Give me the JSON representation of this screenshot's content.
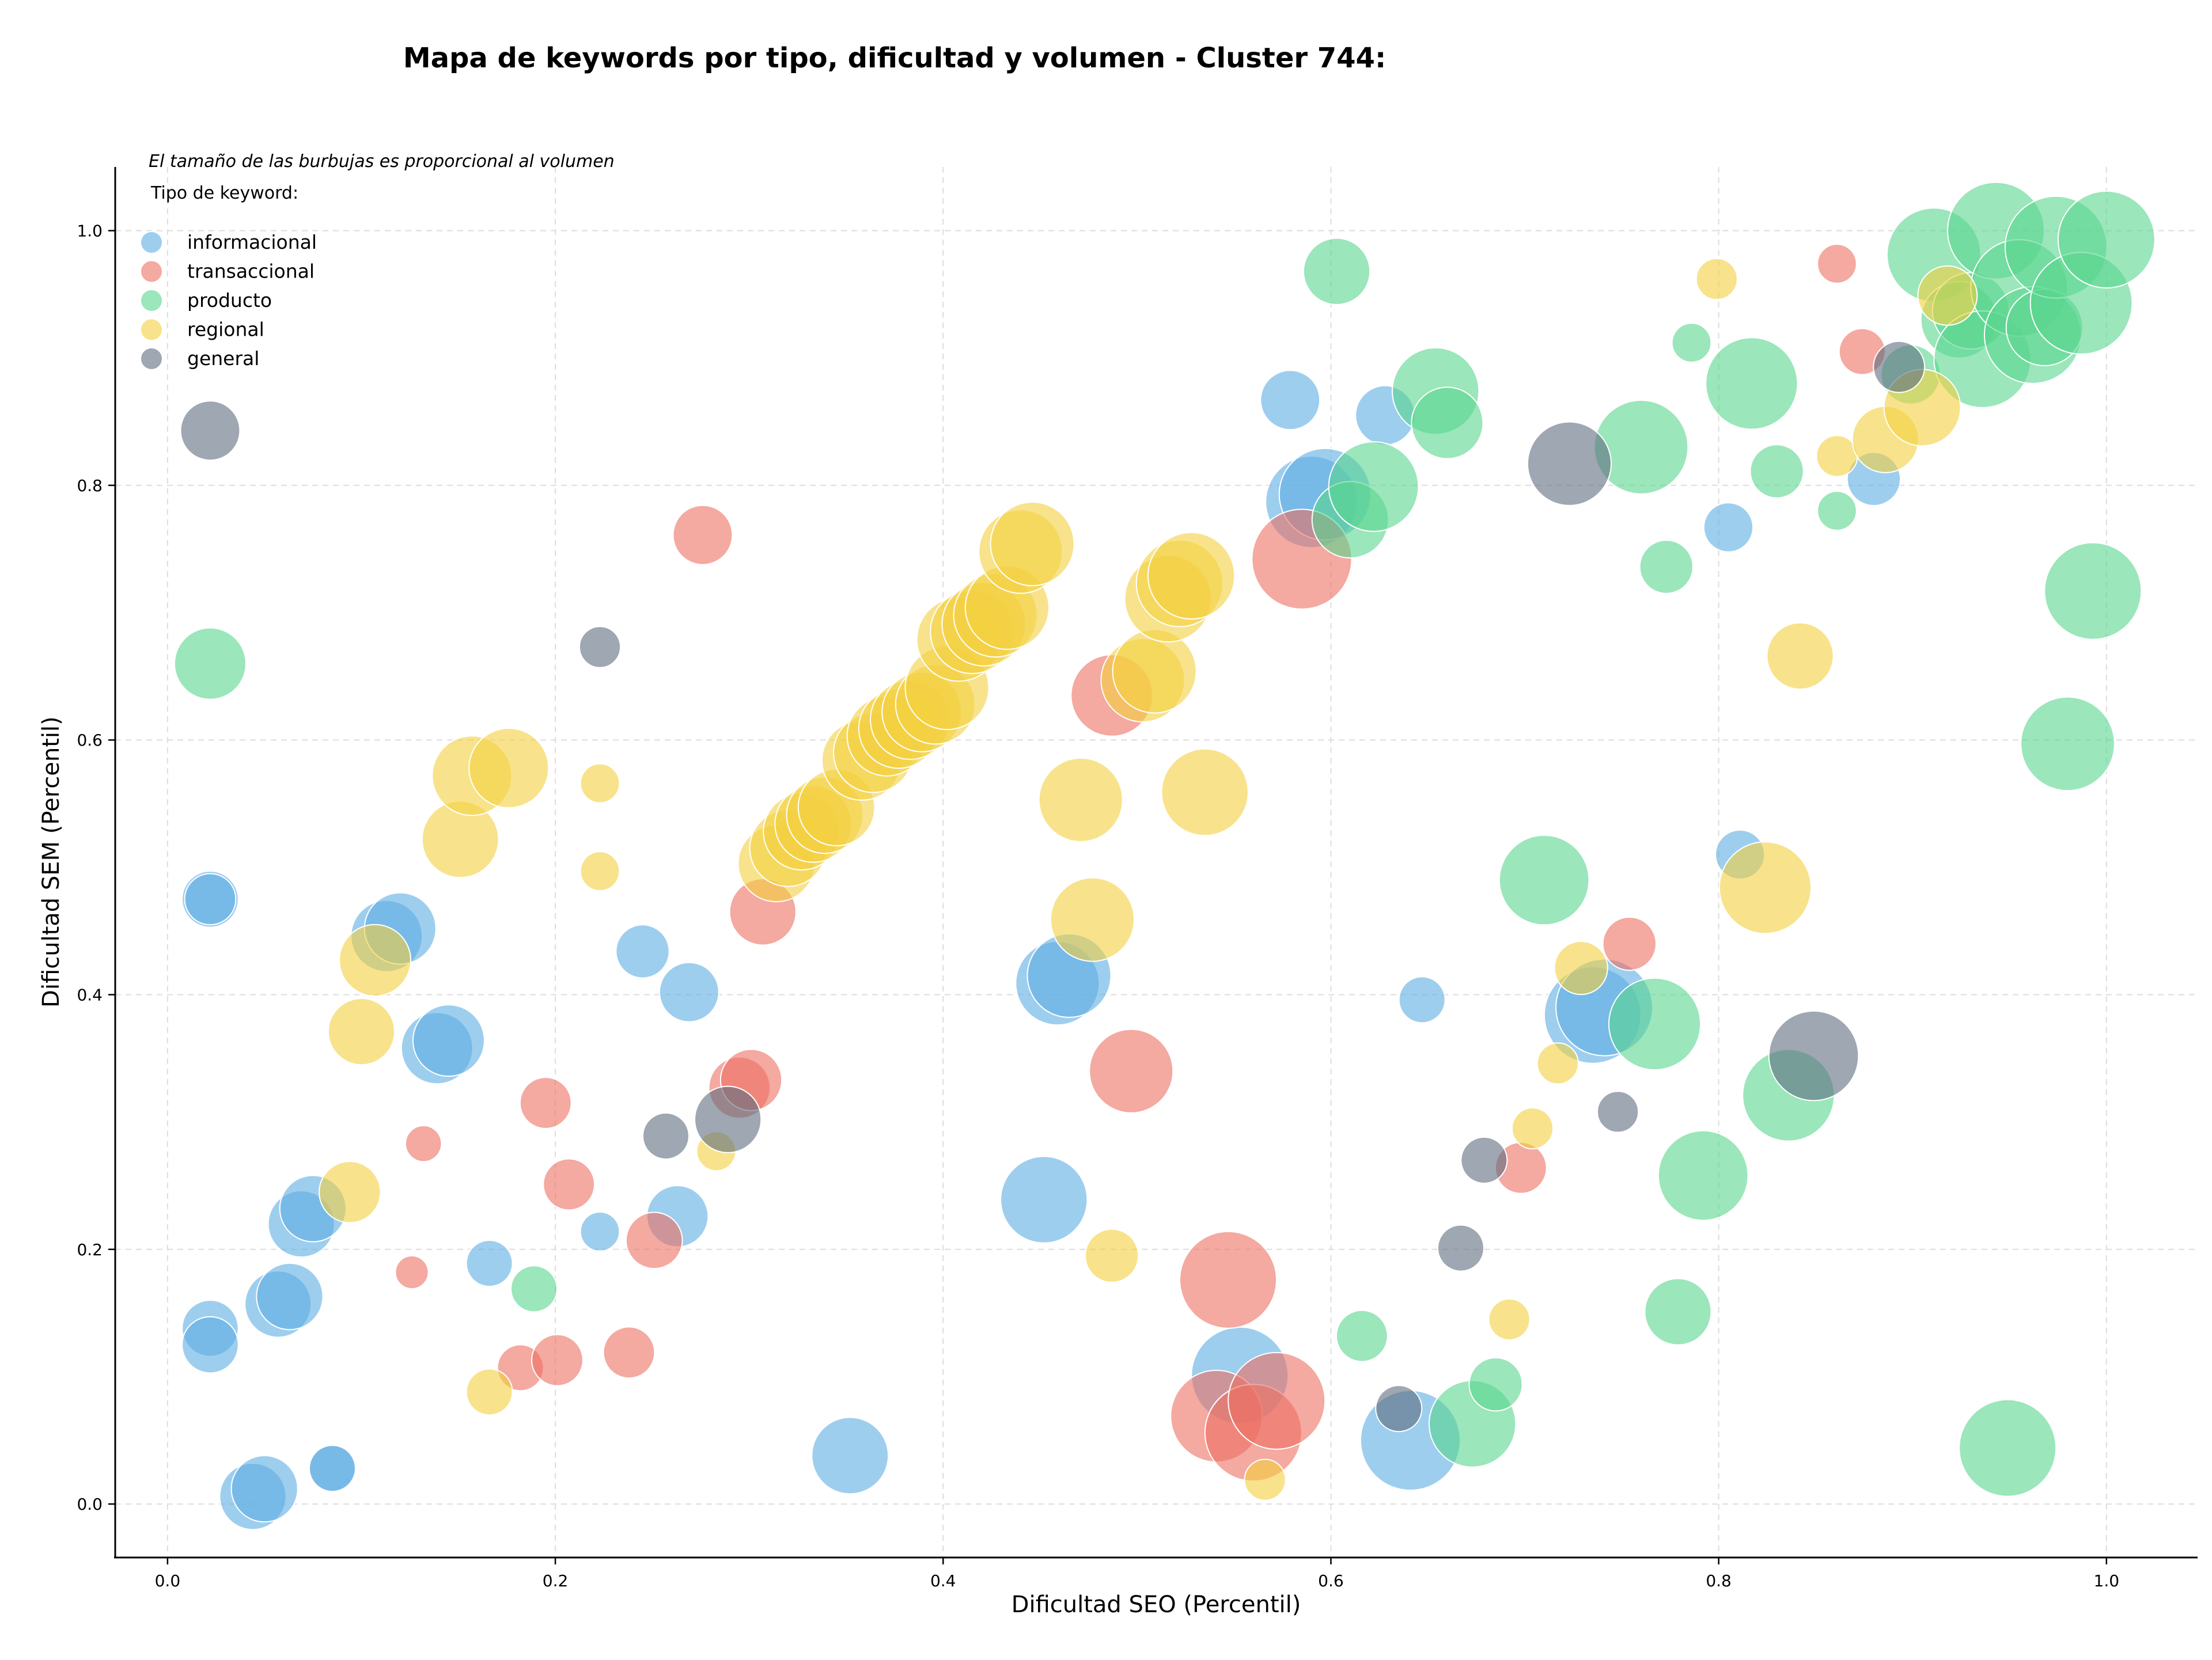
{
  "colors": {
    "informacional": "#5DADE2",
    "transaccional": "#EC7063",
    "producto": "#58D68D",
    "regional": "#F4D03F",
    "general": "#5D6D7E"
  },
  "chart_data": {
    "type": "scatter",
    "title": "Mapa de keywords por tipo, dificultad y volumen - Cluster 744:",
    "xlabel": "Dificultad SEO (Percentil)",
    "ylabel": "Dificultad SEM (Percentil)",
    "xlim": [
      -0.027,
      1.047
    ],
    "ylim": [
      -0.042,
      1.05
    ],
    "xticks": [
      "0.0",
      "0.2",
      "0.4",
      "0.6",
      "0.8",
      "1.0"
    ],
    "yticks": [
      "0.0",
      "0.2",
      "0.4",
      "0.6",
      "0.8",
      "1.0"
    ],
    "grid": true,
    "size_note": "El tamaño de las burbujas es proporcional al volumen",
    "legend_title": "Tipo de keyword:",
    "legend_position": "top-left",
    "legend": [
      "informacional",
      "transaccional",
      "producto",
      "regional",
      "general"
    ],
    "series": [
      {
        "name": "informacional",
        "points": [
          {
            "x": 0.022,
            "y": 0.475,
            "s": 0.35
          },
          {
            "x": 0.022,
            "y": 0.475,
            "s": 0.3
          },
          {
            "x": 0.022,
            "y": 0.138,
            "s": 0.35
          },
          {
            "x": 0.022,
            "y": 0.125,
            "s": 0.35
          },
          {
            "x": 0.044,
            "y": 0.006,
            "s": 0.45
          },
          {
            "x": 0.05,
            "y": 0.012,
            "s": 0.45
          },
          {
            "x": 0.057,
            "y": 0.157,
            "s": 0.45
          },
          {
            "x": 0.063,
            "y": 0.163,
            "s": 0.45
          },
          {
            "x": 0.069,
            "y": 0.22,
            "s": 0.45
          },
          {
            "x": 0.075,
            "y": 0.232,
            "s": 0.45
          },
          {
            "x": 0.085,
            "y": 0.028,
            "s": 0.25
          },
          {
            "x": 0.085,
            "y": 0.028,
            "s": 0.25
          },
          {
            "x": 0.113,
            "y": 0.446,
            "s": 0.5
          },
          {
            "x": 0.12,
            "y": 0.452,
            "s": 0.5
          },
          {
            "x": 0.139,
            "y": 0.358,
            "s": 0.5
          },
          {
            "x": 0.145,
            "y": 0.364,
            "s": 0.5
          },
          {
            "x": 0.166,
            "y": 0.189,
            "s": 0.25
          },
          {
            "x": 0.223,
            "y": 0.214,
            "s": 0.18
          },
          {
            "x": 0.245,
            "y": 0.434,
            "s": 0.32
          },
          {
            "x": 0.263,
            "y": 0.226,
            "s": 0.4
          },
          {
            "x": 0.269,
            "y": 0.402,
            "s": 0.38
          },
          {
            "x": 0.352,
            "y": 0.038,
            "s": 0.55
          },
          {
            "x": 0.452,
            "y": 0.239,
            "s": 0.65
          },
          {
            "x": 0.459,
            "y": 0.409,
            "s": 0.62
          },
          {
            "x": 0.465,
            "y": 0.415,
            "s": 0.62
          },
          {
            "x": 0.553,
            "y": 0.101,
            "s": 0.75
          },
          {
            "x": 0.579,
            "y": 0.867,
            "s": 0.38
          },
          {
            "x": 0.59,
            "y": 0.787,
            "s": 0.7
          },
          {
            "x": 0.597,
            "y": 0.793,
            "s": 0.7
          },
          {
            "x": 0.628,
            "y": 0.855,
            "s": 0.38
          },
          {
            "x": 0.641,
            "y": 0.05,
            "s": 0.78
          },
          {
            "x": 0.647,
            "y": 0.396,
            "s": 0.25
          },
          {
            "x": 0.735,
            "y": 0.384,
            "s": 0.75
          },
          {
            "x": 0.741,
            "y": 0.39,
            "s": 0.75
          },
          {
            "x": 0.805,
            "y": 0.767,
            "s": 0.28
          },
          {
            "x": 0.811,
            "y": 0.51,
            "s": 0.28
          },
          {
            "x": 0.88,
            "y": 0.805,
            "s": 0.32
          }
        ]
      },
      {
        "name": "transaccional",
        "points": [
          {
            "x": 0.126,
            "y": 0.182,
            "s": 0.12
          },
          {
            "x": 0.132,
            "y": 0.283,
            "s": 0.15
          },
          {
            "x": 0.182,
            "y": 0.107,
            "s": 0.25
          },
          {
            "x": 0.195,
            "y": 0.315,
            "s": 0.3
          },
          {
            "x": 0.201,
            "y": 0.113,
            "s": 0.3
          },
          {
            "x": 0.207,
            "y": 0.251,
            "s": 0.3
          },
          {
            "x": 0.238,
            "y": 0.119,
            "s": 0.3
          },
          {
            "x": 0.251,
            "y": 0.207,
            "s": 0.35
          },
          {
            "x": 0.276,
            "y": 0.761,
            "s": 0.38
          },
          {
            "x": 0.295,
            "y": 0.327,
            "s": 0.4
          },
          {
            "x": 0.301,
            "y": 0.333,
            "s": 0.4
          },
          {
            "x": 0.307,
            "y": 0.465,
            "s": 0.45
          },
          {
            "x": 0.487,
            "y": 0.635,
            "s": 0.6
          },
          {
            "x": 0.497,
            "y": 0.34,
            "s": 0.62
          },
          {
            "x": 0.541,
            "y": 0.069,
            "s": 0.7
          },
          {
            "x": 0.547,
            "y": 0.176,
            "s": 0.75
          },
          {
            "x": 0.56,
            "y": 0.056,
            "s": 0.75
          },
          {
            "x": 0.572,
            "y": 0.081,
            "s": 0.75
          },
          {
            "x": 0.585,
            "y": 0.742,
            "s": 0.78
          },
          {
            "x": 0.698,
            "y": 0.264,
            "s": 0.3
          },
          {
            "x": 0.754,
            "y": 0.44,
            "s": 0.32
          },
          {
            "x": 0.861,
            "y": 0.974,
            "s": 0.18
          },
          {
            "x": 0.874,
            "y": 0.905,
            "s": 0.25
          }
        ]
      },
      {
        "name": "producto",
        "points": [
          {
            "x": 0.022,
            "y": 0.66,
            "s": 0.5
          },
          {
            "x": 0.189,
            "y": 0.169,
            "s": 0.25
          },
          {
            "x": 0.603,
            "y": 0.968,
            "s": 0.45
          },
          {
            "x": 0.61,
            "y": 0.773,
            "s": 0.55
          },
          {
            "x": 0.616,
            "y": 0.132,
            "s": 0.3
          },
          {
            "x": 0.622,
            "y": 0.799,
            "s": 0.68
          },
          {
            "x": 0.654,
            "y": 0.874,
            "s": 0.65
          },
          {
            "x": 0.66,
            "y": 0.849,
            "s": 0.5
          },
          {
            "x": 0.673,
            "y": 0.063,
            "s": 0.65
          },
          {
            "x": 0.685,
            "y": 0.094,
            "s": 0.32
          },
          {
            "x": 0.71,
            "y": 0.49,
            "s": 0.68
          },
          {
            "x": 0.76,
            "y": 0.83,
            "s": 0.72
          },
          {
            "x": 0.767,
            "y": 0.377,
            "s": 0.7
          },
          {
            "x": 0.773,
            "y": 0.736,
            "s": 0.32
          },
          {
            "x": 0.779,
            "y": 0.151,
            "s": 0.45
          },
          {
            "x": 0.786,
            "y": 0.912,
            "s": 0.18
          },
          {
            "x": 0.792,
            "y": 0.258,
            "s": 0.68
          },
          {
            "x": 0.817,
            "y": 0.88,
            "s": 0.7
          },
          {
            "x": 0.83,
            "y": 0.811,
            "s": 0.32
          },
          {
            "x": 0.836,
            "y": 0.321,
            "s": 0.7
          },
          {
            "x": 0.861,
            "y": 0.78,
            "s": 0.18
          },
          {
            "x": 0.899,
            "y": 0.887,
            "s": 0.38
          },
          {
            "x": 0.911,
            "y": 0.981,
            "s": 0.72
          },
          {
            "x": 0.924,
            "y": 0.93,
            "s": 0.55
          },
          {
            "x": 0.93,
            "y": 0.937,
            "s": 0.55
          },
          {
            "x": 0.936,
            "y": 0.899,
            "s": 0.75
          },
          {
            "x": 0.943,
            "y": 1.0,
            "s": 0.75
          },
          {
            "x": 0.949,
            "y": 0.044,
            "s": 0.75
          },
          {
            "x": 0.955,
            "y": 0.955,
            "s": 0.75
          },
          {
            "x": 0.962,
            "y": 0.918,
            "s": 0.75
          },
          {
            "x": 0.968,
            "y": 0.924,
            "s": 0.55
          },
          {
            "x": 0.974,
            "y": 0.987,
            "s": 0.8
          },
          {
            "x": 0.98,
            "y": 0.597,
            "s": 0.72
          },
          {
            "x": 0.987,
            "y": 0.943,
            "s": 0.8
          },
          {
            "x": 0.993,
            "y": 0.717,
            "s": 0.75
          },
          {
            "x": 1.0,
            "y": 0.993,
            "s": 0.75
          }
        ]
      },
      {
        "name": "regional",
        "points": [
          {
            "x": 0.094,
            "y": 0.245,
            "s": 0.4
          },
          {
            "x": 0.1,
            "y": 0.371,
            "s": 0.45
          },
          {
            "x": 0.107,
            "y": 0.427,
            "s": 0.5
          },
          {
            "x": 0.151,
            "y": 0.522,
            "s": 0.55
          },
          {
            "x": 0.157,
            "y": 0.572,
            "s": 0.58
          },
          {
            "x": 0.176,
            "y": 0.578,
            "s": 0.58
          },
          {
            "x": 0.166,
            "y": 0.088,
            "s": 0.25
          },
          {
            "x": 0.223,
            "y": 0.566,
            "s": 0.18
          },
          {
            "x": 0.223,
            "y": 0.497,
            "s": 0.18
          },
          {
            "x": 0.283,
            "y": 0.277,
            "s": 0.18
          },
          {
            "x": 0.314,
            "y": 0.503,
            "s": 0.55
          },
          {
            "x": 0.32,
            "y": 0.515,
            "s": 0.55
          },
          {
            "x": 0.327,
            "y": 0.528,
            "s": 0.55
          },
          {
            "x": 0.333,
            "y": 0.534,
            "s": 0.55
          },
          {
            "x": 0.339,
            "y": 0.541,
            "s": 0.55
          },
          {
            "x": 0.345,
            "y": 0.547,
            "s": 0.55
          },
          {
            "x": 0.358,
            "y": 0.584,
            "s": 0.58
          },
          {
            "x": 0.364,
            "y": 0.59,
            "s": 0.58
          },
          {
            "x": 0.371,
            "y": 0.603,
            "s": 0.58
          },
          {
            "x": 0.377,
            "y": 0.609,
            "s": 0.58
          },
          {
            "x": 0.383,
            "y": 0.616,
            "s": 0.58
          },
          {
            "x": 0.389,
            "y": 0.622,
            "s": 0.58
          },
          {
            "x": 0.396,
            "y": 0.628,
            "s": 0.58
          },
          {
            "x": 0.402,
            "y": 0.641,
            "s": 0.62
          },
          {
            "x": 0.408,
            "y": 0.679,
            "s": 0.62
          },
          {
            "x": 0.415,
            "y": 0.685,
            "s": 0.62
          },
          {
            "x": 0.421,
            "y": 0.691,
            "s": 0.62
          },
          {
            "x": 0.427,
            "y": 0.698,
            "s": 0.62
          },
          {
            "x": 0.433,
            "y": 0.704,
            "s": 0.62
          },
          {
            "x": 0.44,
            "y": 0.748,
            "s": 0.62
          },
          {
            "x": 0.446,
            "y": 0.754,
            "s": 0.62
          },
          {
            "x": 0.471,
            "y": 0.553,
            "s": 0.62
          },
          {
            "x": 0.477,
            "y": 0.459,
            "s": 0.62
          },
          {
            "x": 0.487,
            "y": 0.195,
            "s": 0.32
          },
          {
            "x": 0.503,
            "y": 0.647,
            "s": 0.62
          },
          {
            "x": 0.509,
            "y": 0.654,
            "s": 0.62
          },
          {
            "x": 0.516,
            "y": 0.711,
            "s": 0.65
          },
          {
            "x": 0.522,
            "y": 0.723,
            "s": 0.65
          },
          {
            "x": 0.528,
            "y": 0.729,
            "s": 0.65
          },
          {
            "x": 0.535,
            "y": 0.559,
            "s": 0.65
          },
          {
            "x": 0.566,
            "y": 0.019,
            "s": 0.2
          },
          {
            "x": 0.692,
            "y": 0.145,
            "s": 0.2
          },
          {
            "x": 0.704,
            "y": 0.295,
            "s": 0.2
          },
          {
            "x": 0.717,
            "y": 0.346,
            "s": 0.2
          },
          {
            "x": 0.729,
            "y": 0.421,
            "s": 0.32
          },
          {
            "x": 0.799,
            "y": 0.962,
            "s": 0.2
          },
          {
            "x": 0.824,
            "y": 0.484,
            "s": 0.7
          },
          {
            "x": 0.842,
            "y": 0.666,
            "s": 0.45
          },
          {
            "x": 0.861,
            "y": 0.823,
            "s": 0.2
          },
          {
            "x": 0.886,
            "y": 0.836,
            "s": 0.45
          },
          {
            "x": 0.905,
            "y": 0.861,
            "s": 0.55
          },
          {
            "x": 0.918,
            "y": 0.949,
            "s": 0.38
          }
        ]
      },
      {
        "name": "general",
        "points": [
          {
            "x": 0.022,
            "y": 0.843,
            "s": 0.38
          },
          {
            "x": 0.223,
            "y": 0.673,
            "s": 0.2
          },
          {
            "x": 0.257,
            "y": 0.289,
            "s": 0.25
          },
          {
            "x": 0.289,
            "y": 0.302,
            "s": 0.45
          },
          {
            "x": 0.635,
            "y": 0.075,
            "s": 0.25
          },
          {
            "x": 0.667,
            "y": 0.201,
            "s": 0.25
          },
          {
            "x": 0.679,
            "y": 0.27,
            "s": 0.25
          },
          {
            "x": 0.723,
            "y": 0.817,
            "s": 0.62
          },
          {
            "x": 0.748,
            "y": 0.308,
            "s": 0.2
          },
          {
            "x": 0.849,
            "y": 0.352,
            "s": 0.68
          },
          {
            "x": 0.893,
            "y": 0.893,
            "s": 0.3
          }
        ]
      }
    ]
  }
}
